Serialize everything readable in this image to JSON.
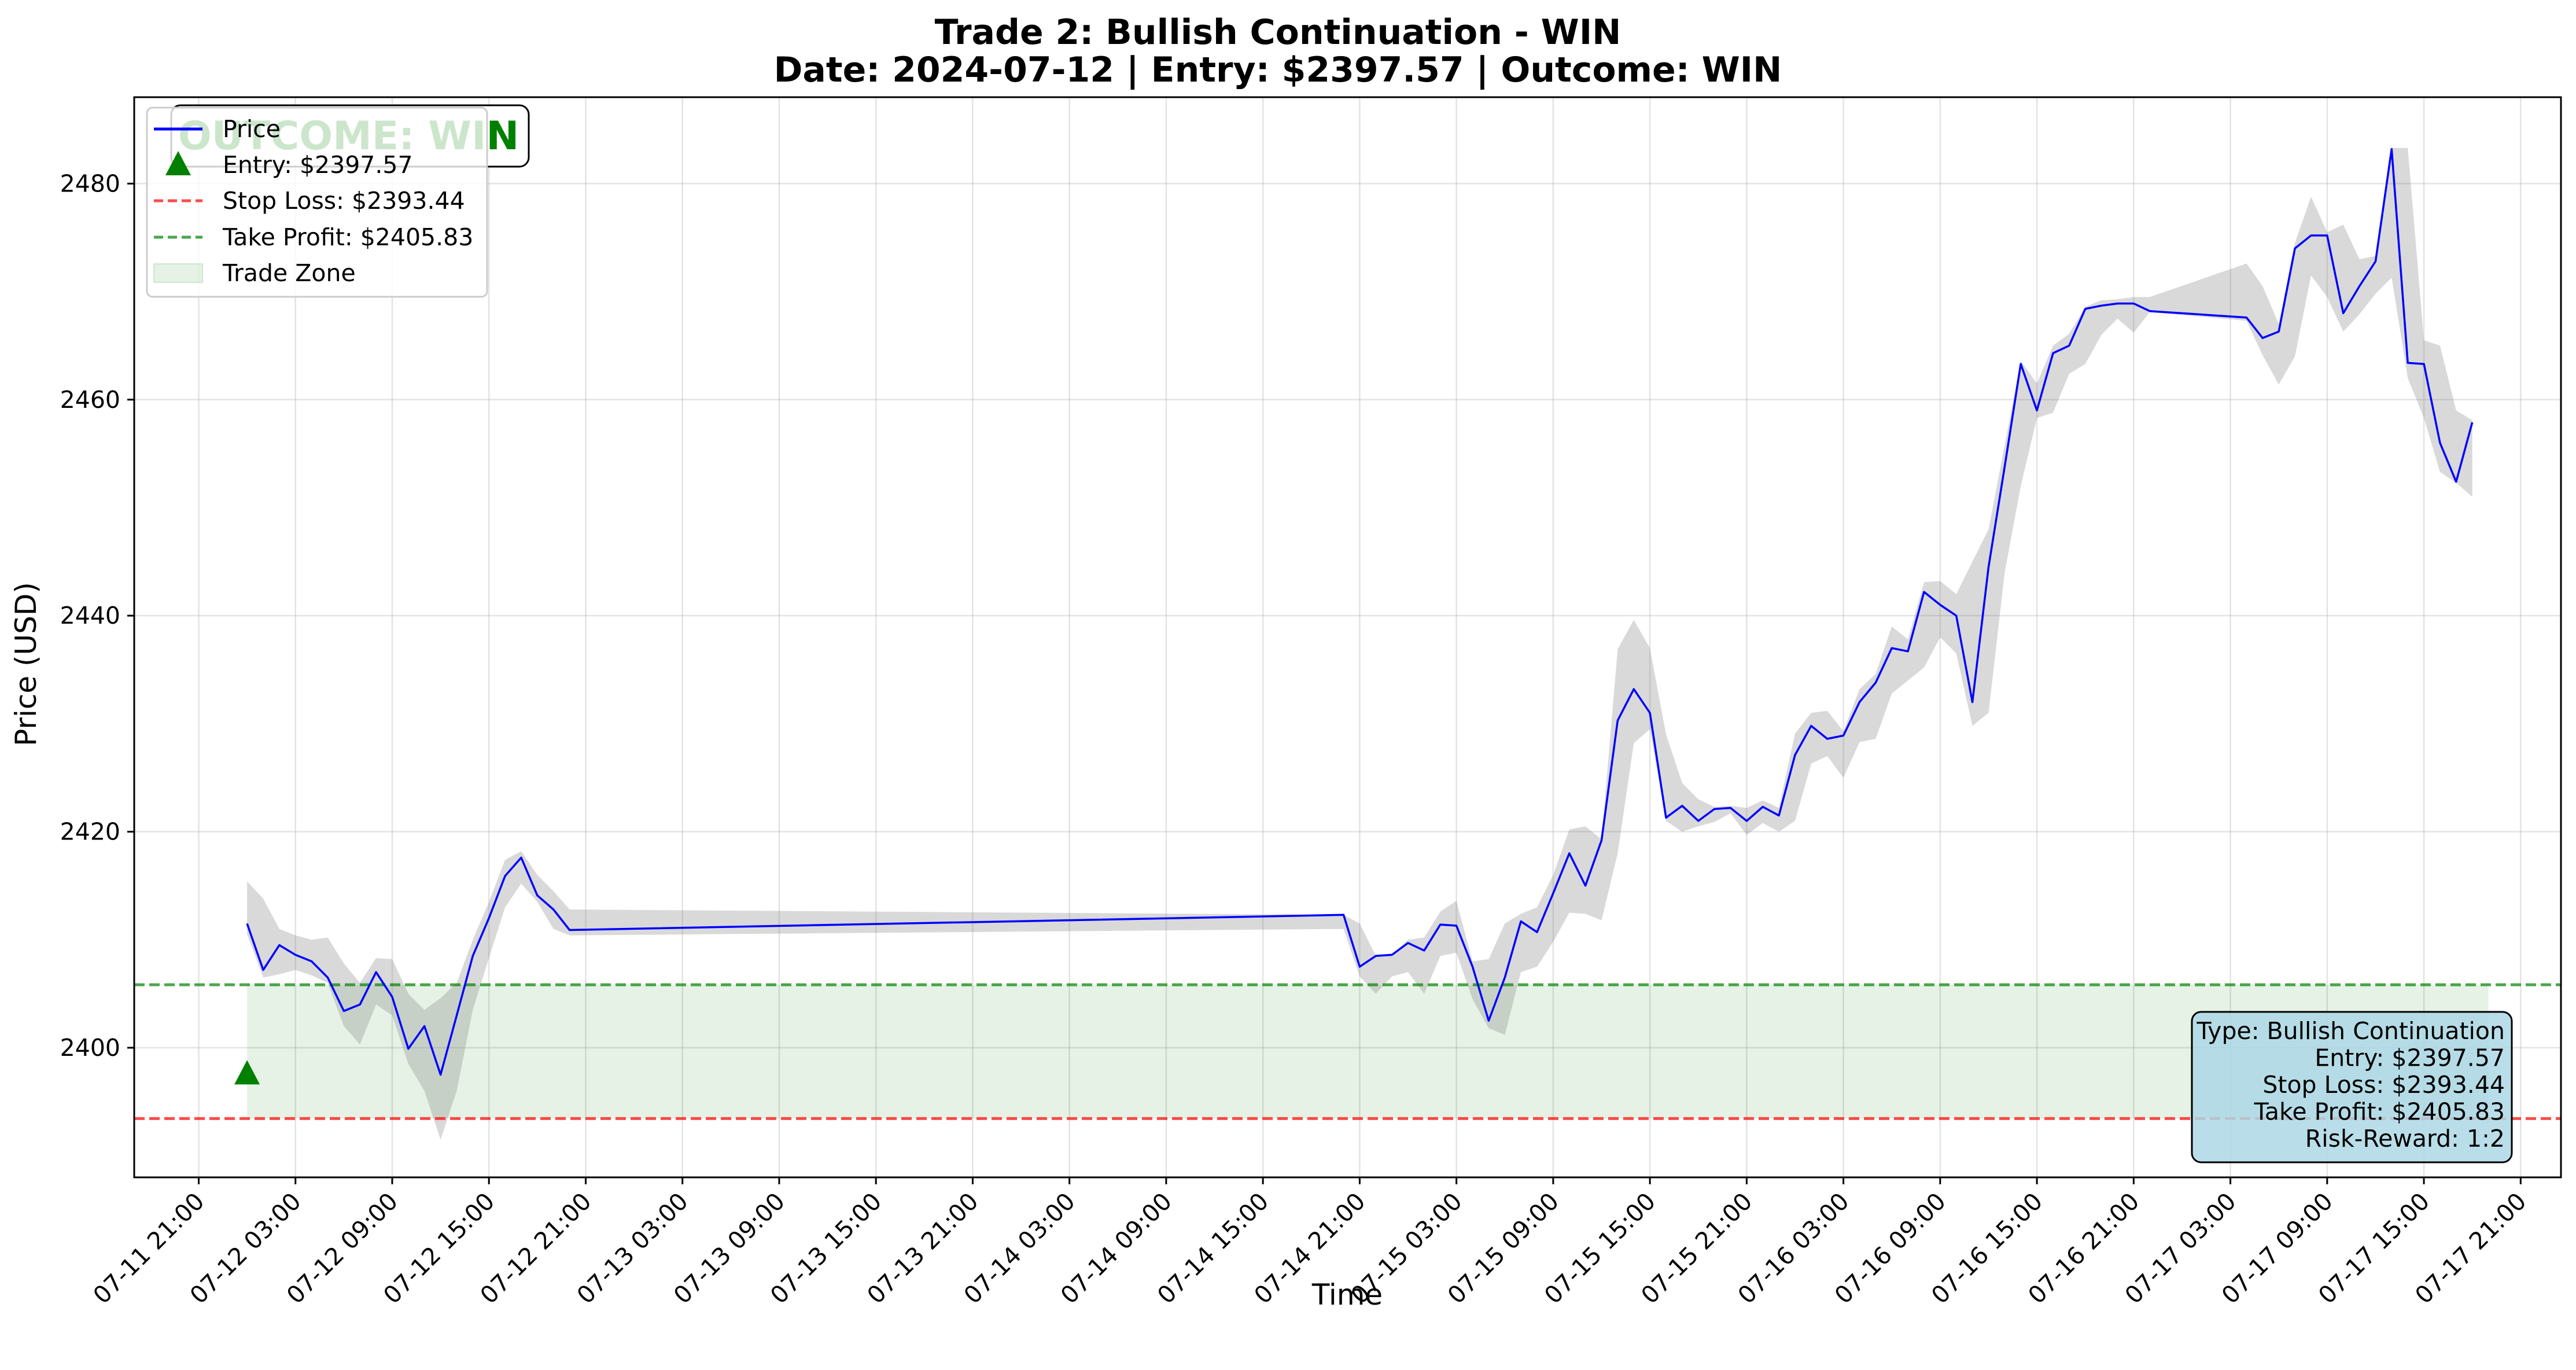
{
  "chart_data": {
    "type": "line",
    "title": "Trade 2: Bullish Continuation - WIN",
    "subtitle": "Date: 2024-07-12 | Entry: $2397.57 | Outcome: WIN",
    "xlabel": "Time",
    "ylabel": "Price (USD)",
    "xlim": [
      "2024-07-11 17:00",
      "2024-07-17 23:30"
    ],
    "ylim": [
      2388,
      2488
    ],
    "yticks": [
      2400,
      2420,
      2440,
      2460,
      2480
    ],
    "xticks": [
      "07-11 21:00",
      "07-12 03:00",
      "07-12 09:00",
      "07-12 15:00",
      "07-12 21:00",
      "07-13 03:00",
      "07-13 09:00",
      "07-13 15:00",
      "07-13 21:00",
      "07-14 03:00",
      "07-14 09:00",
      "07-14 15:00",
      "07-14 21:00",
      "07-15 03:00",
      "07-15 09:00",
      "07-15 15:00",
      "07-15 21:00",
      "07-16 03:00",
      "07-16 09:00",
      "07-16 15:00",
      "07-16 21:00",
      "07-17 03:00",
      "07-17 09:00",
      "07-17 15:00",
      "07-17 21:00"
    ],
    "grid": true,
    "legend_position": "top-left",
    "series": [
      {
        "name": "Price",
        "color": "#0000ff",
        "x": [
          "2024-07-12 00:00",
          "2024-07-12 01:00",
          "2024-07-12 02:00",
          "2024-07-12 03:00",
          "2024-07-12 04:00",
          "2024-07-12 05:00",
          "2024-07-12 06:00",
          "2024-07-12 07:00",
          "2024-07-12 08:00",
          "2024-07-12 09:00",
          "2024-07-12 10:00",
          "2024-07-12 11:00",
          "2024-07-12 12:00",
          "2024-07-12 13:00",
          "2024-07-12 14:00",
          "2024-07-12 15:00",
          "2024-07-12 16:00",
          "2024-07-12 17:00",
          "2024-07-12 18:00",
          "2024-07-12 19:00",
          "2024-07-12 20:00",
          "2024-07-14 20:00",
          "2024-07-14 21:00",
          "2024-07-14 22:00",
          "2024-07-14 23:00",
          "2024-07-15 00:00",
          "2024-07-15 01:00",
          "2024-07-15 02:00",
          "2024-07-15 03:00",
          "2024-07-15 04:00",
          "2024-07-15 05:00",
          "2024-07-15 06:00",
          "2024-07-15 07:00",
          "2024-07-15 08:00",
          "2024-07-15 09:00",
          "2024-07-15 10:00",
          "2024-07-15 11:00",
          "2024-07-15 12:00",
          "2024-07-15 13:00",
          "2024-07-15 14:00",
          "2024-07-15 15:00",
          "2024-07-15 16:00",
          "2024-07-15 17:00",
          "2024-07-15 18:00",
          "2024-07-15 19:00",
          "2024-07-15 20:00",
          "2024-07-15 21:00",
          "2024-07-15 22:00",
          "2024-07-15 23:00",
          "2024-07-16 00:00",
          "2024-07-16 01:00",
          "2024-07-16 02:00",
          "2024-07-16 03:00",
          "2024-07-16 04:00",
          "2024-07-16 05:00",
          "2024-07-16 06:00",
          "2024-07-16 07:00",
          "2024-07-16 08:00",
          "2024-07-16 09:00",
          "2024-07-16 10:00",
          "2024-07-16 11:00",
          "2024-07-16 12:00",
          "2024-07-16 13:00",
          "2024-07-16 14:00",
          "2024-07-16 15:00",
          "2024-07-16 16:00",
          "2024-07-16 17:00",
          "2024-07-16 18:00",
          "2024-07-16 19:00",
          "2024-07-16 20:00",
          "2024-07-16 21:00",
          "2024-07-16 22:00",
          "2024-07-17 04:00",
          "2024-07-17 05:00",
          "2024-07-17 06:00",
          "2024-07-17 07:00",
          "2024-07-17 08:00",
          "2024-07-17 09:00",
          "2024-07-17 10:00",
          "2024-07-17 11:00",
          "2024-07-17 12:00",
          "2024-07-17 13:00",
          "2024-07-17 14:00",
          "2024-07-17 15:00",
          "2024-07-17 16:00",
          "2024-07-17 17:00",
          "2024-07-17 18:00"
        ],
        "values": [
          2411.5,
          2407.2,
          2409.5,
          2408.6,
          2408.0,
          2406.5,
          2403.4,
          2404.0,
          2407.0,
          2404.7,
          2399.9,
          2402.0,
          2397.5,
          2403.0,
          2408.5,
          2412.0,
          2415.9,
          2417.6,
          2414.1,
          2412.8,
          2410.9,
          2412.3,
          2407.5,
          2408.5,
          2408.6,
          2409.7,
          2409.0,
          2411.4,
          2411.3,
          2407.5,
          2402.5,
          2406.5,
          2411.7,
          2410.7,
          2414.3,
          2418.0,
          2415.0,
          2419.2,
          2430.3,
          2433.2,
          2431.0,
          2421.3,
          2422.4,
          2421.0,
          2422.1,
          2422.2,
          2421.0,
          2422.3,
          2421.5,
          2427.1,
          2429.8,
          2428.6,
          2428.9,
          2432.0,
          2433.8,
          2437.0,
          2436.7,
          2442.2,
          2441.0,
          2440.0,
          2432.0,
          2444.5,
          2453.8,
          2463.3,
          2459.0,
          2464.3,
          2465.0,
          2468.4,
          2468.7,
          2468.9,
          2468.9,
          2468.2,
          2467.6,
          2465.7,
          2466.3,
          2474.0,
          2475.2,
          2475.2,
          2468.0,
          2470.5,
          2472.8,
          2483.2,
          2463.4,
          2463.3,
          2456.0,
          2452.4,
          2457.9
        ]
      }
    ],
    "band": {
      "color": "#808080",
      "x": [
        "2024-07-12 00:00",
        "2024-07-12 01:00",
        "2024-07-12 02:00",
        "2024-07-12 03:00",
        "2024-07-12 04:00",
        "2024-07-12 05:00",
        "2024-07-12 06:00",
        "2024-07-12 07:00",
        "2024-07-12 08:00",
        "2024-07-12 09:00",
        "2024-07-12 10:00",
        "2024-07-12 11:00",
        "2024-07-12 12:00",
        "2024-07-12 13:00",
        "2024-07-12 14:00",
        "2024-07-12 15:00",
        "2024-07-12 16:00",
        "2024-07-12 17:00",
        "2024-07-12 18:00",
        "2024-07-12 19:00",
        "2024-07-12 20:00",
        "2024-07-14 20:00",
        "2024-07-14 21:00",
        "2024-07-14 22:00",
        "2024-07-14 23:00",
        "2024-07-15 00:00",
        "2024-07-15 01:00",
        "2024-07-15 02:00",
        "2024-07-15 03:00",
        "2024-07-15 04:00",
        "2024-07-15 05:00",
        "2024-07-15 06:00",
        "2024-07-15 07:00",
        "2024-07-15 08:00",
        "2024-07-15 09:00",
        "2024-07-15 10:00",
        "2024-07-15 11:00",
        "2024-07-15 12:00",
        "2024-07-15 13:00",
        "2024-07-15 14:00",
        "2024-07-15 15:00",
        "2024-07-15 16:00",
        "2024-07-15 17:00",
        "2024-07-15 18:00",
        "2024-07-15 19:00",
        "2024-07-15 20:00",
        "2024-07-15 21:00",
        "2024-07-15 22:00",
        "2024-07-15 23:00",
        "2024-07-16 00:00",
        "2024-07-16 01:00",
        "2024-07-16 02:00",
        "2024-07-16 03:00",
        "2024-07-16 04:00",
        "2024-07-16 05:00",
        "2024-07-16 06:00",
        "2024-07-16 07:00",
        "2024-07-16 08:00",
        "2024-07-16 09:00",
        "2024-07-16 10:00",
        "2024-07-16 11:00",
        "2024-07-16 12:00",
        "2024-07-16 13:00",
        "2024-07-16 14:00",
        "2024-07-16 15:00",
        "2024-07-16 16:00",
        "2024-07-16 17:00",
        "2024-07-16 18:00",
        "2024-07-16 19:00",
        "2024-07-16 20:00",
        "2024-07-16 21:00",
        "2024-07-16 22:00",
        "2024-07-17 04:00",
        "2024-07-17 05:00",
        "2024-07-17 06:00",
        "2024-07-17 07:00",
        "2024-07-17 08:00",
        "2024-07-17 09:00",
        "2024-07-17 10:00",
        "2024-07-17 11:00",
        "2024-07-17 12:00",
        "2024-07-17 13:00",
        "2024-07-17 14:00",
        "2024-07-17 15:00",
        "2024-07-17 16:00",
        "2024-07-17 17:00",
        "2024-07-17 18:00"
      ],
      "high": [
        2415.4,
        2413.8,
        2411.0,
        2410.4,
        2410.0,
        2410.2,
        2407.8,
        2406.0,
        2408.3,
        2408.2,
        2405.0,
        2403.5,
        2404.6,
        2406.0,
        2410.0,
        2413.5,
        2417.4,
        2418.2,
        2416.0,
        2414.5,
        2412.8,
        2412.3,
        2411.5,
        2408.5,
        2408.6,
        2410.0,
        2410.2,
        2412.6,
        2413.6,
        2408.0,
        2408.2,
        2411.5,
        2412.4,
        2413.0,
        2416.0,
        2420.2,
        2420.5,
        2419.3,
        2436.9,
        2439.6,
        2437.0,
        2429.0,
        2424.5,
        2423.0,
        2422.3,
        2422.4,
        2422.2,
        2422.9,
        2422.2,
        2429.1,
        2431.0,
        2431.2,
        2429.3,
        2433.2,
        2434.6,
        2439.0,
        2437.8,
        2443.1,
        2443.2,
        2442.0,
        2445.0,
        2448.0,
        2455.8,
        2463.6,
        2461.5,
        2465.0,
        2466.1,
        2468.6,
        2469.2,
        2469.3,
        2469.5,
        2469.5,
        2472.6,
        2470.5,
        2467.0,
        2474.5,
        2478.8,
        2475.5,
        2476.2,
        2473.0,
        2473.3,
        2483.3,
        2483.3,
        2465.5,
        2465.0,
        2459.0,
        2458.1
      ],
      "low": [
        2410.5,
        2406.5,
        2406.8,
        2407.2,
        2406.7,
        2406.0,
        2402.0,
        2400.3,
        2404.0,
        2403.0,
        2398.5,
        2396.0,
        2391.5,
        2396.0,
        2403.5,
        2408.3,
        2413.0,
        2415.2,
        2413.5,
        2411.0,
        2410.4,
        2411.0,
        2406.6,
        2405.0,
        2406.6,
        2407.0,
        2405.0,
        2408.5,
        2408.8,
        2404.5,
        2401.8,
        2401.2,
        2407.0,
        2407.5,
        2409.8,
        2412.5,
        2412.4,
        2411.8,
        2418.0,
        2428.2,
        2429.5,
        2421.0,
        2420.0,
        2420.5,
        2420.9,
        2421.7,
        2419.7,
        2420.8,
        2420.0,
        2421.0,
        2426.3,
        2427.0,
        2425.0,
        2428.3,
        2428.6,
        2432.8,
        2434.0,
        2435.2,
        2438.0,
        2436.5,
        2429.8,
        2431.0,
        2444.0,
        2452.0,
        2458.3,
        2458.8,
        2462.4,
        2463.3,
        2466.0,
        2467.5,
        2466.2,
        2468.1,
        2467.3,
        2464.1,
        2461.4,
        2464.0,
        2471.5,
        2469.5,
        2466.3,
        2467.9,
        2469.8,
        2471.3,
        2462.0,
        2458.3,
        2453.3,
        2452.3,
        2451.0
      ]
    },
    "entry": {
      "label": "Entry: $2397.57",
      "x": "2024-07-12 00:00",
      "y": 2397.57,
      "color": "#008000"
    },
    "stop_loss": {
      "label": "Stop Loss: $2393.44",
      "y": 2393.44,
      "color": "#ff0000"
    },
    "take_profit": {
      "label": "Take Profit: $2405.83",
      "y": 2405.83,
      "color": "#008000"
    },
    "trade_zone": {
      "label": "Trade Zone",
      "x_start": "2024-07-12 00:00",
      "x_end": "2024-07-17 19:00",
      "y_low": 2393.44,
      "y_high": 2405.83,
      "color": "#008000"
    },
    "outcome_badge": {
      "ghost_text": "OUTCOME: WI",
      "visible_text": "N",
      "color": "#008000"
    },
    "info_box": {
      "lines": [
        "Type: Bullish Continuation",
        "Entry: $2397.57",
        "Stop Loss: $2393.44",
        "Take Profit: $2405.83",
        "Risk-Reward: 1:2"
      ],
      "position": "bottom-right",
      "background": "#add8e6"
    }
  }
}
